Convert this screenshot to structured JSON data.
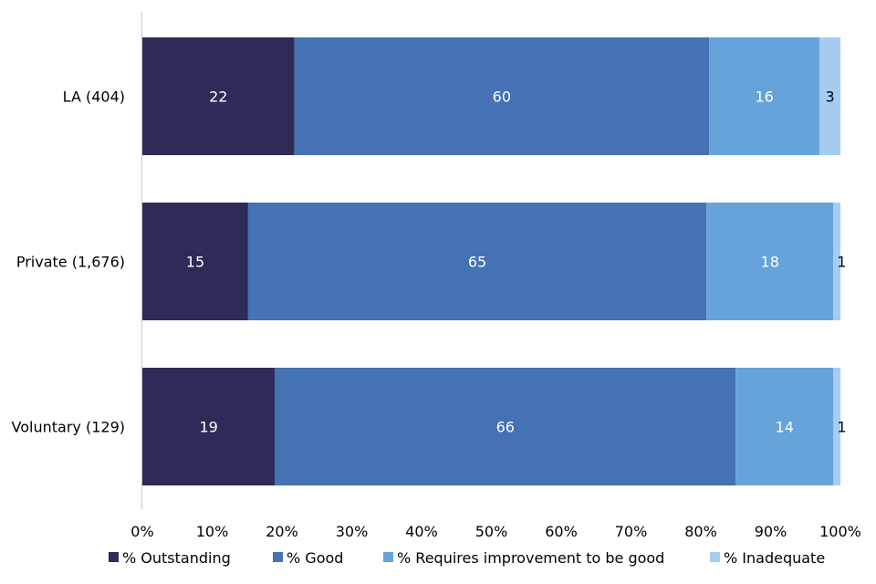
{
  "chart_data": {
    "type": "bar",
    "orientation": "horizontal",
    "stacked": true,
    "percent_stacked": true,
    "categories": [
      "LA (404)",
      "Private (1,676)",
      "Voluntary (129)"
    ],
    "series": [
      {
        "name": "% Outstanding",
        "values": [
          22,
          15,
          19
        ],
        "color": "#2e2b58",
        "label_color": "#ffffff"
      },
      {
        "name": "% Good",
        "values": [
          60,
          65,
          66
        ],
        "color": "#4472b4",
        "label_color": "#ffffff"
      },
      {
        "name": "% Requires improvement to be good",
        "values": [
          16,
          18,
          14
        ],
        "color": "#66a3db",
        "label_color": "#ffffff"
      },
      {
        "name": "% Inadequate",
        "values": [
          3,
          1,
          1
        ],
        "color": "#a6cdf0",
        "label_color": "#000000"
      }
    ],
    "x_ticks": [
      "0%",
      "10%",
      "20%",
      "30%",
      "40%",
      "50%",
      "60%",
      "70%",
      "80%",
      "90%",
      "100%"
    ],
    "xlim": [
      0,
      100
    ],
    "grid": false,
    "legend_position": "bottom",
    "title": "",
    "xlabel": "",
    "ylabel": ""
  }
}
